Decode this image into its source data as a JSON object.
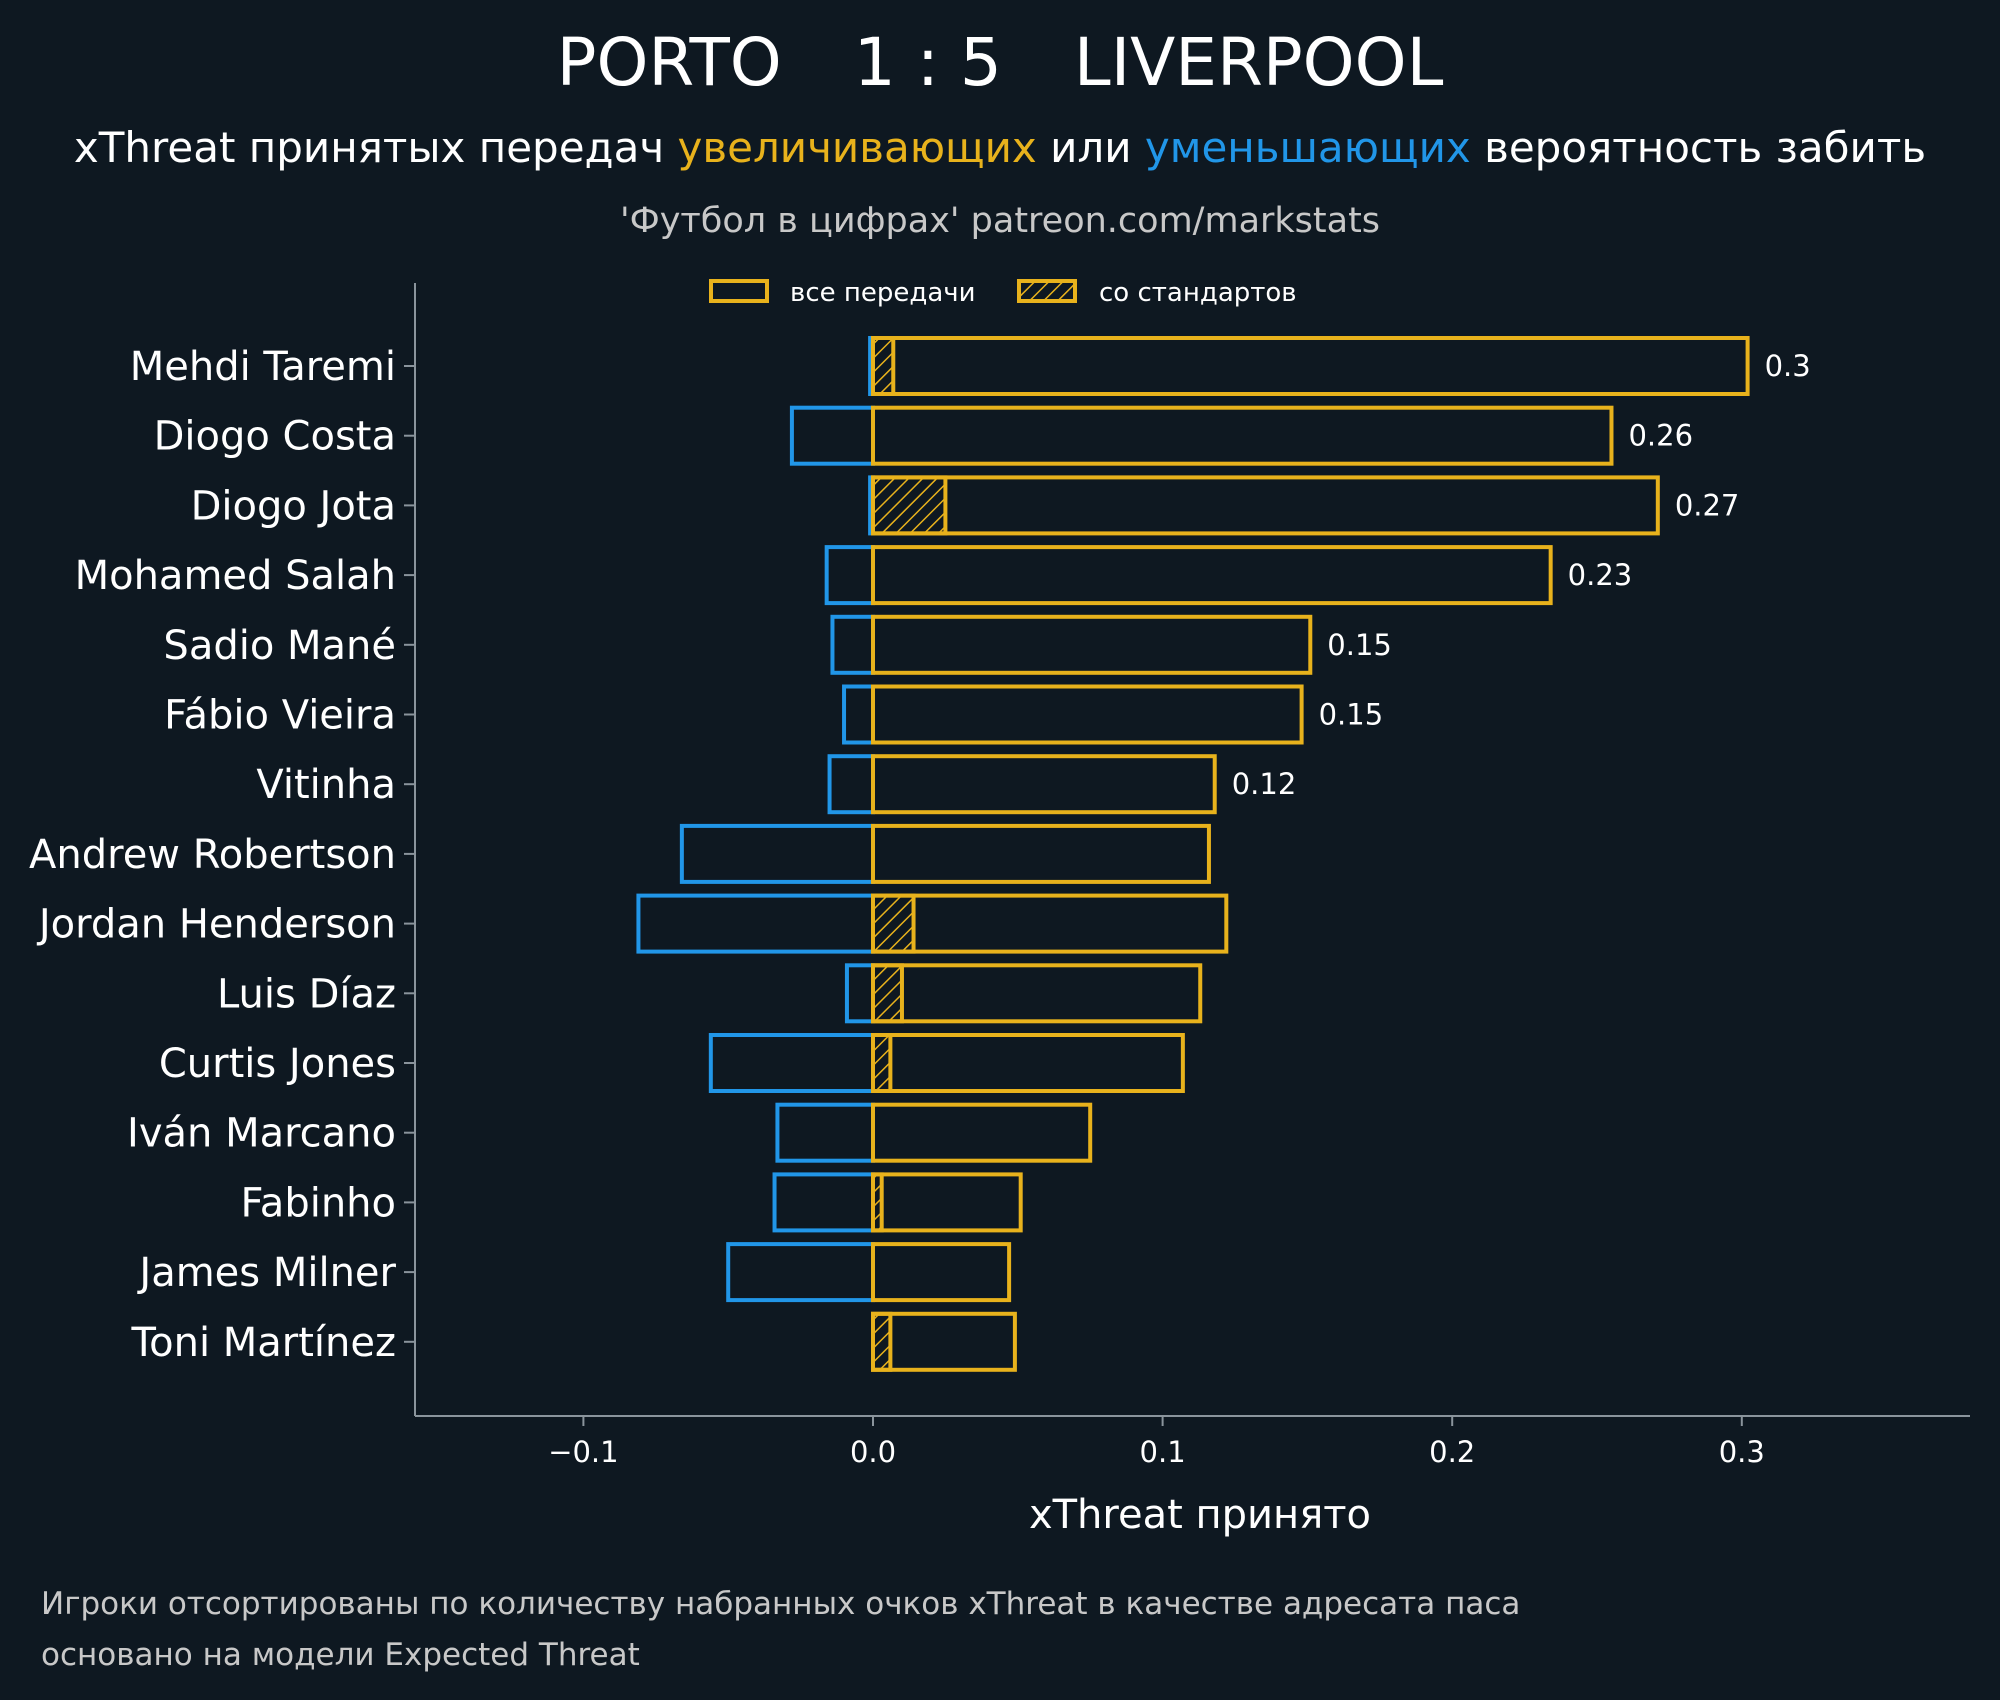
{
  "colors": {
    "background": "#0e1821",
    "positive": "#e8b21c",
    "negative": "#2196e8",
    "axis": "#8a949c",
    "text": "#ffffff",
    "muted": "#c8c8c8"
  },
  "header": {
    "team_home": "PORTO",
    "score": "1 : 5",
    "team_away": "LIVERPOOL",
    "subtitle_part1": "xThreat принятых передач ",
    "subtitle_positive": "увеличивающих",
    "subtitle_mid": " или ",
    "subtitle_negative": "уменьшающих",
    "subtitle_part2": " вероятность забить",
    "credit": "'Футбол в цифрах' patreon.com/markstats"
  },
  "legend": {
    "all_passes": "все передачи",
    "set_pieces": "со стандартов"
  },
  "chart_data": {
    "type": "bar",
    "orientation": "horizontal",
    "xlabel": "xThreat принято",
    "xlim": [
      -0.158,
      0.38
    ],
    "xticks": [
      -0.1,
      0.0,
      0.1,
      0.2,
      0.3
    ],
    "xtick_labels": [
      "−0.1",
      "0.0",
      "0.1",
      "0.2",
      "0.3"
    ],
    "categories": [
      "Mehdi Taremi",
      "Diogo Costa",
      "Diogo Jota",
      "Mohamed Salah",
      "Sadio Mané",
      "Fábio Vieira",
      "Vitinha",
      "Andrew Robertson",
      "Jordan Henderson",
      "Luis Díaz",
      "Curtis Jones",
      "Iván Marcano",
      "Fabinho",
      "James Milner",
      "Toni Martínez"
    ],
    "series": [
      {
        "name": "positive (все передачи)",
        "values": [
          0.302,
          0.255,
          0.271,
          0.234,
          0.151,
          0.148,
          0.118,
          0.116,
          0.122,
          0.113,
          0.107,
          0.075,
          0.051,
          0.047,
          0.049
        ]
      },
      {
        "name": "negative (все передачи)",
        "values": [
          -0.001,
          -0.028,
          -0.001,
          -0.016,
          -0.014,
          -0.01,
          -0.015,
          -0.066,
          -0.081,
          -0.009,
          -0.056,
          -0.033,
          -0.034,
          -0.05,
          0.0
        ]
      },
      {
        "name": "со стандартов",
        "values": [
          0.007,
          0.0,
          0.025,
          0.0,
          0.0,
          0.0,
          0.0,
          0.0,
          0.014,
          0.01,
          0.006,
          0.0,
          0.003,
          0.0,
          0.006
        ]
      }
    ],
    "data_labels": [
      "0.3",
      "0.26",
      "0.27",
      "0.23",
      "0.15",
      "0.15",
      "0.12",
      "",
      "",
      "",
      "",
      "",
      "",
      "",
      ""
    ]
  },
  "footnote": {
    "line1": "Игроки отсортированы по количеству набранных очков xThreat в качестве адресата паса",
    "line2": "основано на модели Expected Threat"
  }
}
